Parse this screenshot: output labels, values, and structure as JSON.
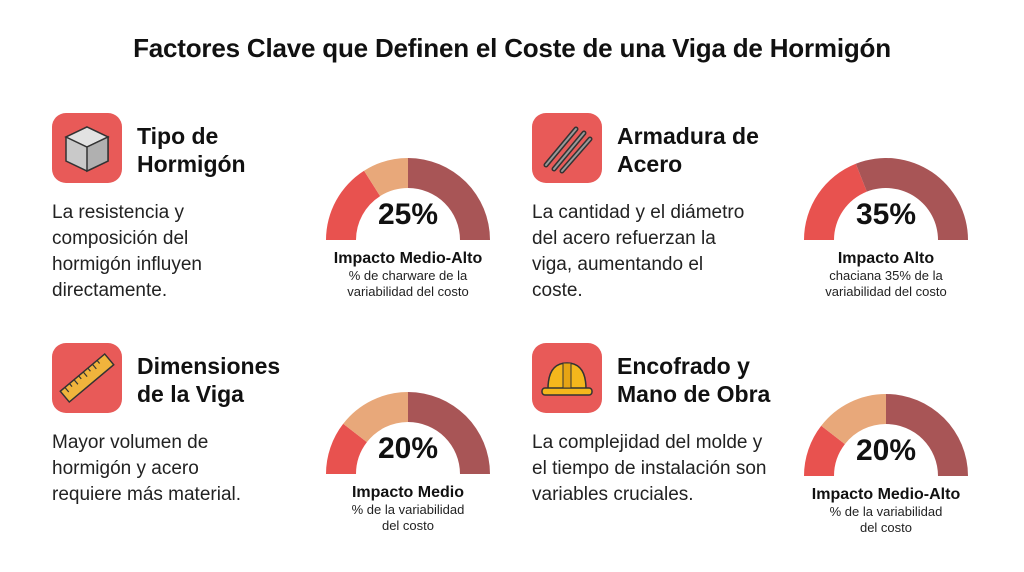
{
  "title": "Factores Clave que Definen el Coste de una Viga de Hormigón",
  "colors": {
    "icon_bg": "#e85a58",
    "low": "#e8524f",
    "mid": "#e8a87a",
    "high": "#a85556"
  },
  "factors": [
    {
      "icon": "concrete-cube-icon",
      "heading": [
        "Tipo de",
        "Hormigón"
      ],
      "description": "La resistencia y composición del hormigón influyen directamente.",
      "percent": "25%",
      "impact": "Impacto Medio-Alto",
      "note": [
        "% de charware de la",
        "variabilidad del costo"
      ],
      "gauge_segments": [
        0.32,
        0.18,
        0.5
      ]
    },
    {
      "icon": "rebar-icon",
      "heading": [
        "Armadura de",
        "Acero"
      ],
      "description": "La cantidad y el diámetro del acero refuerzan la viga, aumentando el coste.",
      "percent": "35%",
      "impact": "Impacto Alto",
      "note": [
        "chaciana 35% de la",
        "variabilidad del costo"
      ],
      "gauge_segments": [
        0.38,
        0,
        0.62
      ]
    },
    {
      "icon": "ruler-icon",
      "heading": [
        "Dimensiones",
        "de la Viga"
      ],
      "description": "Mayor volumen de hormigón y acero requiere más material.",
      "percent": "20%",
      "impact": "Impacto Medio",
      "note": [
        "% de la variabilidad",
        "del costo"
      ],
      "gauge_segments": [
        0.21,
        0.29,
        0.5
      ]
    },
    {
      "icon": "hard-hat-icon",
      "heading": [
        "Encofrado y",
        "Mano de Obra"
      ],
      "description": "La complejidad del molde y el tiempo de instalación son variables cruciales.",
      "percent": "20%",
      "impact": "Impacto Medio-Alto",
      "note": [
        "% de la variabilidad",
        "del costo"
      ],
      "gauge_segments": [
        0.21,
        0.29,
        0.5
      ]
    }
  ]
}
